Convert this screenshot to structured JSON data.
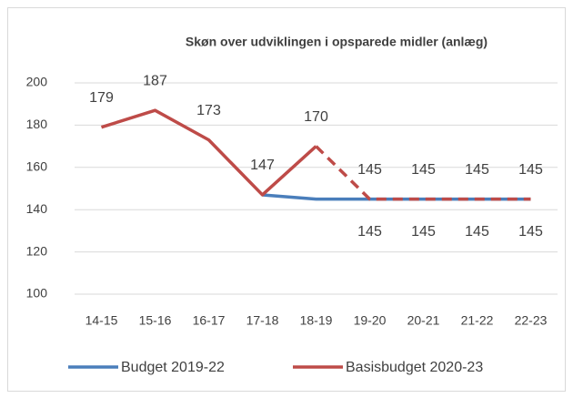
{
  "chart_data": {
    "type": "line",
    "title": "Skøn over udviklingen i opsparede midler (anlæg)",
    "categories": [
      "14-15",
      "15-16",
      "16-17",
      "17-18",
      "18-19",
      "19-20",
      "20-21",
      "21-22",
      "22-23"
    ],
    "series": [
      {
        "name": "Budget 2019-22",
        "color": "#4a7ebb",
        "values": [
          null,
          null,
          null,
          147,
          145,
          145,
          145,
          145,
          145
        ],
        "value_labels": [
          null,
          null,
          null,
          null,
          null,
          "145",
          "145",
          "145",
          "145"
        ]
      },
      {
        "name": "Basisbudget 2020-23",
        "color": "#be4b48",
        "values": [
          179,
          187,
          173,
          147,
          170,
          145,
          145,
          145,
          145
        ],
        "dash_from_index": 4
      }
    ],
    "ylim": [
      100,
      200
    ],
    "yticks": [
      100,
      120,
      140,
      160,
      180,
      200
    ],
    "grid": true,
    "legend": "bottom"
  }
}
